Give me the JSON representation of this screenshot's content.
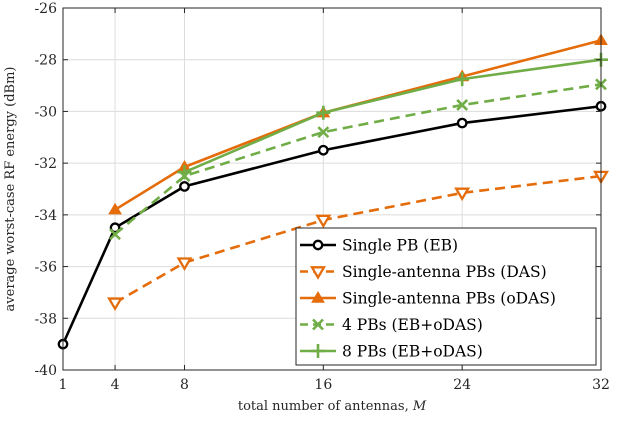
{
  "chart_data": {
    "type": "line",
    "xlabel_text": "total number of antennas, ",
    "xlabel_var": "M",
    "ylabel": "average worst-case RF energy (dBm)",
    "xlim": [
      1,
      32
    ],
    "ylim": [
      -40,
      -26
    ],
    "xticks": [
      1,
      4,
      8,
      16,
      24,
      32
    ],
    "xtick_labels": [
      "1",
      "4",
      "8",
      "16",
      "24",
      "32"
    ],
    "yticks": [
      -40,
      -38,
      -36,
      -34,
      -32,
      -30,
      -28,
      -26
    ],
    "ytick_labels": [
      "-40",
      "-38",
      "-36",
      "-34",
      "-32",
      "-30",
      "-28",
      "-26"
    ],
    "grid": true,
    "legend_position": "bottom-right",
    "series": [
      {
        "name": "Single PB (EB)",
        "x": [
          1,
          4,
          8,
          16,
          24,
          32
        ],
        "y": [
          -39.0,
          -34.5,
          -32.9,
          -31.5,
          -30.45,
          -29.8
        ],
        "color": "#000000",
        "dash": "solid",
        "marker": "circle"
      },
      {
        "name": "Single-antenna PBs (DAS)",
        "x": [
          4,
          8,
          16,
          24,
          32
        ],
        "y": [
          -37.4,
          -35.85,
          -34.2,
          -33.15,
          -32.5
        ],
        "color": "#E46C0A",
        "dash": "dashed",
        "marker": "triangle-down"
      },
      {
        "name": "Single-antenna PBs (oDAS)",
        "x": [
          4,
          8,
          16,
          24,
          32
        ],
        "y": [
          -33.8,
          -32.15,
          -30.05,
          -28.65,
          -27.25
        ],
        "color": "#E46C0A",
        "dash": "solid",
        "marker": "triangle-up"
      },
      {
        "name": "4 PBs (EB+oDAS)",
        "x": [
          4,
          8,
          16,
          24,
          32
        ],
        "y": [
          -34.75,
          -32.5,
          -30.8,
          -29.75,
          -28.95
        ],
        "color": "#70AD47",
        "dash": "dashed",
        "marker": "x"
      },
      {
        "name": "8 PBs (EB+oDAS)",
        "x": [
          8,
          16,
          24,
          32
        ],
        "y": [
          -32.35,
          -30.05,
          -28.75,
          -28.0
        ],
        "color": "#70AD47",
        "dash": "solid",
        "marker": "plus"
      }
    ]
  }
}
